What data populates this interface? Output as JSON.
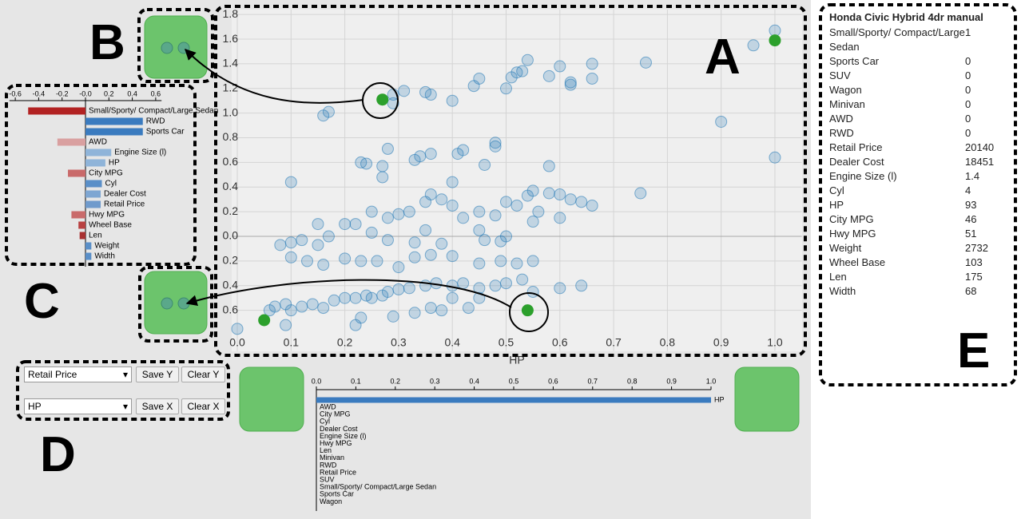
{
  "labels": {
    "a": "A",
    "b": "B",
    "c": "C",
    "d": "D",
    "e": "E"
  },
  "chart_data": [
    {
      "type": "scatter",
      "x_label": "HP",
      "xlim": [
        -0.01,
        1.05
      ],
      "ylim": [
        -0.93,
        1.84
      ],
      "xticks": [
        {
          "value": 0,
          "label": "0.0"
        },
        0.1,
        0.2,
        0.3,
        0.4,
        0.5,
        0.6,
        0.7,
        0.8,
        0.9,
        {
          "value": 1,
          "label": "1.0"
        }
      ],
      "yticks": [
        1.8,
        1.6,
        1.4,
        1.2,
        {
          "value": 1,
          "label": "1.0"
        },
        0.8,
        0.6,
        0.4,
        0.2,
        {
          "value": 0,
          "label": "0.0"
        },
        {
          "value": -0.2,
          "label": "0.2"
        },
        {
          "value": -0.4,
          "label": "0.4"
        },
        {
          "value": -0.6,
          "label": "0.6"
        }
      ],
      "grid": true,
      "series": [
        {
          "color": "#1f77b4",
          "x": [
            0.31,
            0.35,
            0.36,
            0.4,
            0.44,
            0.45,
            0.5,
            0.51,
            0.52,
            0.53,
            0.54,
            0.58,
            0.6,
            0.62,
            0.62,
            0.66,
            0.66,
            0.76,
            0.96,
            1.0,
            0.9,
            1.0,
            0.16,
            0.17,
            0.29,
            0.29,
            0.28,
            0.23,
            0.24,
            0.27,
            0.27,
            0.33,
            0.34,
            0.36,
            0.41,
            0.42,
            0.48,
            0.48,
            0.46,
            0.58,
            0.1,
            0.75,
            0.15,
            0.2,
            0.25,
            0.28,
            0.3,
            0.32,
            0.35,
            0.36,
            0.38,
            0.4,
            0.4,
            0.42,
            0.45,
            0.48,
            0.5,
            0.52,
            0.54,
            0.55,
            0.56,
            0.58,
            0.6,
            0.62,
            0.64,
            0.66,
            0.6,
            0.55,
            0.45,
            0.35,
            0.25,
            0.22,
            0.08,
            0.1,
            0.12,
            0.15,
            0.17,
            0.28,
            0.33,
            0.38,
            0.46,
            0.49,
            0.5,
            0.1,
            0.13,
            0.16,
            0.2,
            0.23,
            0.26,
            0.3,
            0.33,
            0.36,
            0.4,
            0.45,
            0.49,
            0.52,
            0.55,
            0.06,
            0.07,
            0.09,
            0.1,
            0.12,
            0.14,
            0.16,
            0.18,
            0.2,
            0.22,
            0.24,
            0.25,
            0.27,
            0.28,
            0.3,
            0.32,
            0.35,
            0.37,
            0.4,
            0.42,
            0.45,
            0.48,
            0.5,
            0.53,
            0.55,
            0.6,
            0.64,
            0.22,
            0.23,
            0.29,
            0.33,
            0.36,
            0.38,
            0.43,
            0.0,
            0.09,
            0.4,
            0.45
          ],
          "values": [
            1.18,
            1.17,
            1.15,
            1.1,
            1.22,
            1.28,
            1.2,
            1.29,
            1.33,
            1.34,
            1.43,
            1.3,
            1.38,
            1.25,
            1.23,
            1.4,
            1.28,
            1.41,
            1.55,
            1.67,
            0.93,
            0.64,
            0.98,
            1.01,
            1.08,
            1.15,
            0.71,
            0.6,
            0.59,
            0.48,
            0.57,
            0.62,
            0.65,
            0.67,
            0.67,
            0.7,
            0.76,
            0.73,
            0.58,
            0.57,
            0.44,
            0.35,
            0.1,
            0.1,
            0.2,
            0.15,
            0.18,
            0.2,
            0.28,
            0.34,
            0.3,
            0.25,
            0.44,
            0.15,
            0.2,
            0.17,
            0.28,
            0.25,
            0.33,
            0.37,
            0.2,
            0.35,
            0.34,
            0.3,
            0.28,
            0.25,
            0.15,
            0.12,
            0.05,
            0.05,
            0.03,
            0.1,
            -0.07,
            -0.05,
            -0.03,
            -0.07,
            0.0,
            -0.03,
            -0.05,
            -0.06,
            -0.03,
            -0.04,
            0.0,
            -0.17,
            -0.2,
            -0.23,
            -0.18,
            -0.2,
            -0.2,
            -0.25,
            -0.17,
            -0.15,
            -0.16,
            -0.22,
            -0.2,
            -0.22,
            -0.2,
            -0.6,
            -0.57,
            -0.55,
            -0.6,
            -0.57,
            -0.55,
            -0.58,
            -0.52,
            -0.5,
            -0.5,
            -0.48,
            -0.5,
            -0.48,
            -0.45,
            -0.43,
            -0.42,
            -0.4,
            -0.38,
            -0.4,
            -0.38,
            -0.42,
            -0.4,
            -0.38,
            -0.35,
            -0.45,
            -0.42,
            -0.4,
            -0.72,
            -0.66,
            -0.65,
            -0.62,
            -0.58,
            -0.6,
            -0.58,
            -0.75,
            -0.72,
            -0.5,
            -0.5
          ]
        },
        {
          "color": "#2ca02c",
          "x": [
            1.0,
            0.27,
            0.54,
            0.05
          ],
          "values": [
            1.59,
            1.11,
            -0.6,
            -0.68
          ]
        }
      ]
    },
    {
      "type": "hbar",
      "xlim": [
        -0.65,
        0.65
      ],
      "xticks": [
        -0.6,
        -0.4,
        -0.2,
        {
          "value": 0,
          "label": "-0.0"
        },
        0.2,
        0.4,
        0.6
      ],
      "categories": [
        "Small/Sporty/ Compact/Large Sedan",
        "RWD",
        "Sports Car",
        "AWD",
        "Engine Size (l)",
        "HP",
        "City MPG",
        "Cyl",
        "Dealer Cost",
        "Retail Price",
        "Hwy MPG",
        "Wheel Base",
        "Len",
        "Weight",
        "Width"
      ],
      "values": [
        -0.49,
        0.49,
        0.49,
        -0.24,
        0.22,
        0.17,
        -0.15,
        0.14,
        0.13,
        0.13,
        -0.12,
        -0.06,
        -0.05,
        0.05,
        0.05
      ],
      "colors": [
        "#b22222",
        "#3a7bbf",
        "#3a7bbf",
        "#d9a0a0",
        "#8fb4d9",
        "#8fb4d9",
        "#c96a6a",
        "#5a8fc8",
        "#7ea6d2",
        "#6f9acc",
        "#c96a6a",
        "#b84040",
        "#a83030",
        "#5a8fc8",
        "#5a8fc8"
      ]
    },
    {
      "type": "hbar",
      "xlim": [
        0,
        1
      ],
      "xticks": [
        {
          "value": 0,
          "label": "0.0"
        },
        0.1,
        0.2,
        0.3,
        0.4,
        0.5,
        0.6,
        0.7,
        0.8,
        0.9,
        {
          "value": 1,
          "label": "1.0"
        }
      ],
      "categories": [
        "HP",
        "AWD",
        "City MPG",
        "Cyl",
        "Dealer Cost",
        "Engine Size (l)",
        "Hwy MPG",
        "Len",
        "Minivan",
        "RWD",
        "Retail Price",
        "SUV",
        "Small/Sporty/ Compact/Large Sedan",
        "Sports Car",
        "Wagon"
      ],
      "values": [
        1.0,
        0,
        0,
        0,
        0,
        0,
        0,
        0,
        0,
        0,
        0,
        0,
        0,
        0,
        0
      ],
      "color": "#3a7bbf"
    }
  ],
  "controls": {
    "y_select": "Retail Price",
    "x_select": "HP",
    "buttons": [
      "Save Y",
      "Clear Y",
      "Save X",
      "Clear X"
    ]
  },
  "details": {
    "title": "Honda Civic Hybrid 4dr manual",
    "rows": [
      [
        "Small/Sporty/ Compact/Large Sedan",
        "1"
      ],
      [
        "Sports Car",
        "0"
      ],
      [
        "SUV",
        "0"
      ],
      [
        "Wagon",
        "0"
      ],
      [
        "Minivan",
        "0"
      ],
      [
        "AWD",
        "0"
      ],
      [
        "RWD",
        "0"
      ],
      [
        "Retail Price",
        "20140"
      ],
      [
        "Dealer Cost",
        "18451"
      ],
      [
        "Engine Size (l)",
        "1.4"
      ],
      [
        "Cyl",
        "4"
      ],
      [
        "HP",
        "93"
      ],
      [
        "City MPG",
        "46"
      ],
      [
        "Hwy MPG",
        "51"
      ],
      [
        "Weight",
        "2732"
      ],
      [
        "Wheel Base",
        "103"
      ],
      [
        "Len",
        "175"
      ],
      [
        "Width",
        "68"
      ]
    ]
  }
}
